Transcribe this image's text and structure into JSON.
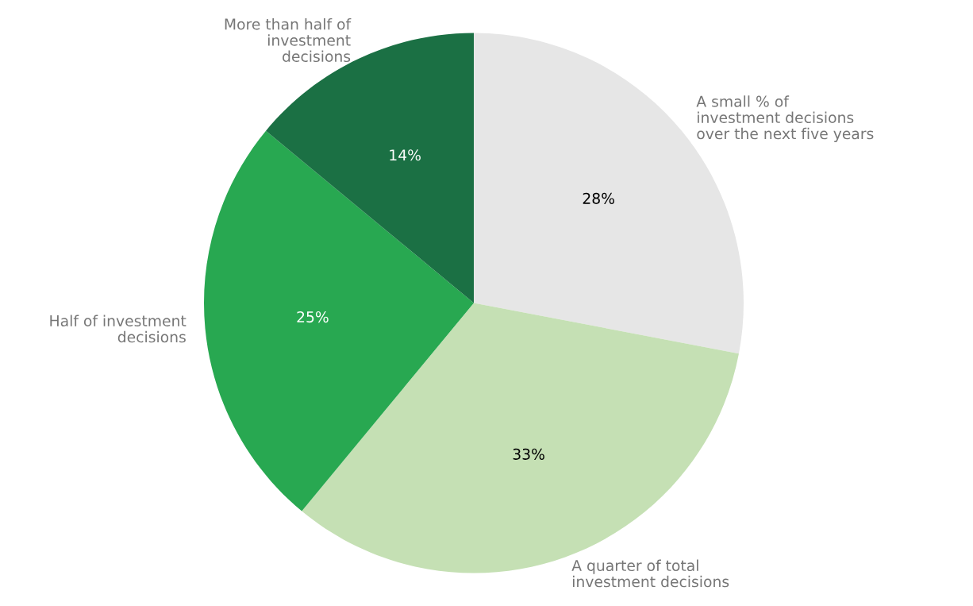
{
  "chart_data": {
    "type": "pie",
    "categories": [
      "A small % of\ninvestment decisions\nover the next five years",
      "A quarter of total\ninvestment decisions",
      "Half of investment\ndecisions",
      "More than half of\ninvestment\ndecisions"
    ],
    "values": [
      28,
      33,
      25,
      14
    ],
    "colors": [
      "#e6e6e6",
      "#c5e0b4",
      "#28a851",
      "#1b7044"
    ],
    "value_labels": [
      "28%",
      "33%",
      "25%",
      "14%"
    ],
    "legend": false
  }
}
